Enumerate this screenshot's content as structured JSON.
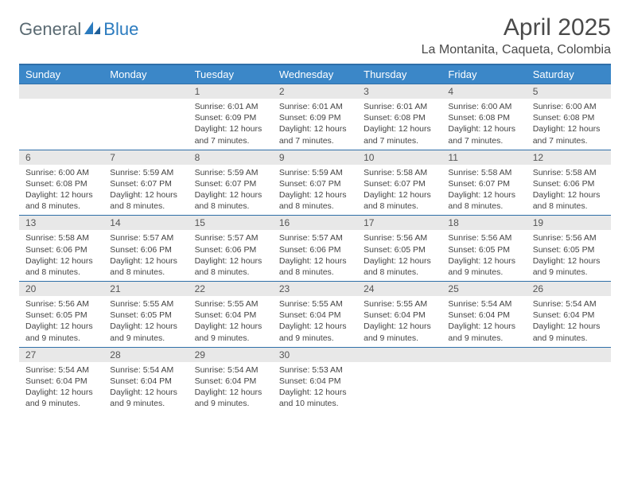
{
  "logo": {
    "part1": "General",
    "part2": "Blue"
  },
  "title": "April 2025",
  "location": "La Montanita, Caqueta, Colombia",
  "colors": {
    "header_bg": "#3b87c8",
    "header_border": "#2f6fa8",
    "daynum_bg": "#e8e8e8",
    "text": "#444444",
    "logo_gray": "#5a6a72",
    "logo_blue": "#2b7bbf"
  },
  "weekdays": [
    "Sunday",
    "Monday",
    "Tuesday",
    "Wednesday",
    "Thursday",
    "Friday",
    "Saturday"
  ],
  "weeks": [
    [
      {
        "n": "",
        "l": [
          "",
          "",
          "",
          ""
        ]
      },
      {
        "n": "",
        "l": [
          "",
          "",
          "",
          ""
        ]
      },
      {
        "n": "1",
        "l": [
          "Sunrise: 6:01 AM",
          "Sunset: 6:09 PM",
          "Daylight: 12 hours",
          "and 7 minutes."
        ]
      },
      {
        "n": "2",
        "l": [
          "Sunrise: 6:01 AM",
          "Sunset: 6:09 PM",
          "Daylight: 12 hours",
          "and 7 minutes."
        ]
      },
      {
        "n": "3",
        "l": [
          "Sunrise: 6:01 AM",
          "Sunset: 6:08 PM",
          "Daylight: 12 hours",
          "and 7 minutes."
        ]
      },
      {
        "n": "4",
        "l": [
          "Sunrise: 6:00 AM",
          "Sunset: 6:08 PM",
          "Daylight: 12 hours",
          "and 7 minutes."
        ]
      },
      {
        "n": "5",
        "l": [
          "Sunrise: 6:00 AM",
          "Sunset: 6:08 PM",
          "Daylight: 12 hours",
          "and 7 minutes."
        ]
      }
    ],
    [
      {
        "n": "6",
        "l": [
          "Sunrise: 6:00 AM",
          "Sunset: 6:08 PM",
          "Daylight: 12 hours",
          "and 8 minutes."
        ]
      },
      {
        "n": "7",
        "l": [
          "Sunrise: 5:59 AM",
          "Sunset: 6:07 PM",
          "Daylight: 12 hours",
          "and 8 minutes."
        ]
      },
      {
        "n": "8",
        "l": [
          "Sunrise: 5:59 AM",
          "Sunset: 6:07 PM",
          "Daylight: 12 hours",
          "and 8 minutes."
        ]
      },
      {
        "n": "9",
        "l": [
          "Sunrise: 5:59 AM",
          "Sunset: 6:07 PM",
          "Daylight: 12 hours",
          "and 8 minutes."
        ]
      },
      {
        "n": "10",
        "l": [
          "Sunrise: 5:58 AM",
          "Sunset: 6:07 PM",
          "Daylight: 12 hours",
          "and 8 minutes."
        ]
      },
      {
        "n": "11",
        "l": [
          "Sunrise: 5:58 AM",
          "Sunset: 6:07 PM",
          "Daylight: 12 hours",
          "and 8 minutes."
        ]
      },
      {
        "n": "12",
        "l": [
          "Sunrise: 5:58 AM",
          "Sunset: 6:06 PM",
          "Daylight: 12 hours",
          "and 8 minutes."
        ]
      }
    ],
    [
      {
        "n": "13",
        "l": [
          "Sunrise: 5:58 AM",
          "Sunset: 6:06 PM",
          "Daylight: 12 hours",
          "and 8 minutes."
        ]
      },
      {
        "n": "14",
        "l": [
          "Sunrise: 5:57 AM",
          "Sunset: 6:06 PM",
          "Daylight: 12 hours",
          "and 8 minutes."
        ]
      },
      {
        "n": "15",
        "l": [
          "Sunrise: 5:57 AM",
          "Sunset: 6:06 PM",
          "Daylight: 12 hours",
          "and 8 minutes."
        ]
      },
      {
        "n": "16",
        "l": [
          "Sunrise: 5:57 AM",
          "Sunset: 6:06 PM",
          "Daylight: 12 hours",
          "and 8 minutes."
        ]
      },
      {
        "n": "17",
        "l": [
          "Sunrise: 5:56 AM",
          "Sunset: 6:05 PM",
          "Daylight: 12 hours",
          "and 8 minutes."
        ]
      },
      {
        "n": "18",
        "l": [
          "Sunrise: 5:56 AM",
          "Sunset: 6:05 PM",
          "Daylight: 12 hours",
          "and 9 minutes."
        ]
      },
      {
        "n": "19",
        "l": [
          "Sunrise: 5:56 AM",
          "Sunset: 6:05 PM",
          "Daylight: 12 hours",
          "and 9 minutes."
        ]
      }
    ],
    [
      {
        "n": "20",
        "l": [
          "Sunrise: 5:56 AM",
          "Sunset: 6:05 PM",
          "Daylight: 12 hours",
          "and 9 minutes."
        ]
      },
      {
        "n": "21",
        "l": [
          "Sunrise: 5:55 AM",
          "Sunset: 6:05 PM",
          "Daylight: 12 hours",
          "and 9 minutes."
        ]
      },
      {
        "n": "22",
        "l": [
          "Sunrise: 5:55 AM",
          "Sunset: 6:04 PM",
          "Daylight: 12 hours",
          "and 9 minutes."
        ]
      },
      {
        "n": "23",
        "l": [
          "Sunrise: 5:55 AM",
          "Sunset: 6:04 PM",
          "Daylight: 12 hours",
          "and 9 minutes."
        ]
      },
      {
        "n": "24",
        "l": [
          "Sunrise: 5:55 AM",
          "Sunset: 6:04 PM",
          "Daylight: 12 hours",
          "and 9 minutes."
        ]
      },
      {
        "n": "25",
        "l": [
          "Sunrise: 5:54 AM",
          "Sunset: 6:04 PM",
          "Daylight: 12 hours",
          "and 9 minutes."
        ]
      },
      {
        "n": "26",
        "l": [
          "Sunrise: 5:54 AM",
          "Sunset: 6:04 PM",
          "Daylight: 12 hours",
          "and 9 minutes."
        ]
      }
    ],
    [
      {
        "n": "27",
        "l": [
          "Sunrise: 5:54 AM",
          "Sunset: 6:04 PM",
          "Daylight: 12 hours",
          "and 9 minutes."
        ]
      },
      {
        "n": "28",
        "l": [
          "Sunrise: 5:54 AM",
          "Sunset: 6:04 PM",
          "Daylight: 12 hours",
          "and 9 minutes."
        ]
      },
      {
        "n": "29",
        "l": [
          "Sunrise: 5:54 AM",
          "Sunset: 6:04 PM",
          "Daylight: 12 hours",
          "and 9 minutes."
        ]
      },
      {
        "n": "30",
        "l": [
          "Sunrise: 5:53 AM",
          "Sunset: 6:04 PM",
          "Daylight: 12 hours",
          "and 10 minutes."
        ]
      },
      {
        "n": "",
        "l": [
          "",
          "",
          "",
          ""
        ]
      },
      {
        "n": "",
        "l": [
          "",
          "",
          "",
          ""
        ]
      },
      {
        "n": "",
        "l": [
          "",
          "",
          "",
          ""
        ]
      }
    ]
  ]
}
